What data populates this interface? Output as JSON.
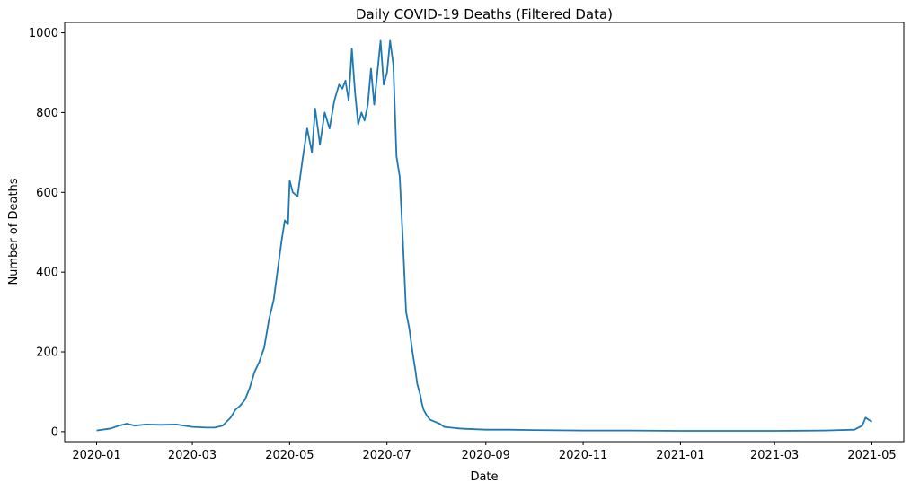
{
  "chart_data": {
    "type": "line",
    "title": "Daily COVID-19 Deaths (Filtered Data)",
    "xlabel": "Date",
    "ylabel": "Number of Deaths",
    "xlim": [
      "2019-12-12",
      "2021-05-21"
    ],
    "ylim": [
      -25,
      1026
    ],
    "grid": false,
    "x_ticks": [
      "2020-01",
      "2020-03",
      "2020-05",
      "2020-07",
      "2020-09",
      "2020-11",
      "2021-01",
      "2021-03",
      "2021-05"
    ],
    "y_ticks": [
      0,
      200,
      400,
      600,
      800,
      1000
    ],
    "colors": {
      "series": "#1f77b4",
      "axis": "#000000"
    },
    "series": [
      {
        "x": [
          "2020-01-01",
          "2020-01-10",
          "2020-01-15",
          "2020-01-20",
          "2020-01-25",
          "2020-02-01",
          "2020-02-10",
          "2020-02-20",
          "2020-03-01",
          "2020-03-10",
          "2020-03-15",
          "2020-03-20",
          "2020-03-25",
          "2020-03-28",
          "2020-03-31",
          "2020-04-03",
          "2020-04-06",
          "2020-04-09",
          "2020-04-12",
          "2020-04-15",
          "2020-04-18",
          "2020-04-21",
          "2020-04-24",
          "2020-04-26",
          "2020-04-28",
          "2020-04-30",
          "2020-05-01",
          "2020-05-03",
          "2020-05-06",
          "2020-05-09",
          "2020-05-12",
          "2020-05-15",
          "2020-05-17",
          "2020-05-20",
          "2020-05-23",
          "2020-05-26",
          "2020-05-29",
          "2020-06-01",
          "2020-06-03",
          "2020-06-05",
          "2020-06-07",
          "2020-06-09",
          "2020-06-11",
          "2020-06-13",
          "2020-06-15",
          "2020-06-17",
          "2020-06-19",
          "2020-06-21",
          "2020-06-23",
          "2020-06-25",
          "2020-06-27",
          "2020-06-29",
          "2020-07-01",
          "2020-07-03",
          "2020-07-05",
          "2020-07-07",
          "2020-07-09",
          "2020-07-11",
          "2020-07-13",
          "2020-07-15",
          "2020-07-17",
          "2020-07-19",
          "2020-07-20",
          "2020-07-22",
          "2020-07-23",
          "2020-07-24",
          "2020-07-26",
          "2020-07-28",
          "2020-07-31",
          "2020-08-03",
          "2020-08-06",
          "2020-08-10",
          "2020-08-15",
          "2020-08-20",
          "2020-08-25",
          "2020-09-01",
          "2020-09-15",
          "2020-10-01",
          "2020-11-01",
          "2020-12-01",
          "2021-01-01",
          "2021-02-01",
          "2021-03-01",
          "2021-04-01",
          "2021-04-20",
          "2021-04-25",
          "2021-04-27",
          "2021-04-29",
          "2021-05-01"
        ],
        "values": [
          3,
          8,
          15,
          20,
          15,
          18,
          17,
          18,
          12,
          10,
          10,
          15,
          35,
          55,
          65,
          80,
          110,
          150,
          175,
          210,
          280,
          330,
          420,
          480,
          530,
          520,
          630,
          600,
          590,
          680,
          760,
          700,
          810,
          720,
          800,
          760,
          830,
          870,
          860,
          880,
          830,
          960,
          850,
          770,
          800,
          780,
          820,
          910,
          820,
          900,
          980,
          870,
          900,
          980,
          920,
          690,
          640,
          480,
          300,
          260,
          200,
          150,
          120,
          90,
          70,
          55,
          40,
          30,
          25,
          20,
          12,
          10,
          8,
          7,
          6,
          5,
          5,
          4,
          3,
          3,
          2,
          2,
          2,
          3,
          5,
          15,
          35,
          30,
          25
        ]
      }
    ]
  }
}
